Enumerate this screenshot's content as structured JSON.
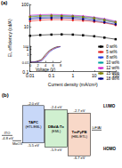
{
  "chart_data": [
    {
      "type": "line",
      "title": "(a)",
      "xlabel": "Current density (mA/cm²)",
      "ylabel": "EL efficiency (cd/A)",
      "log": true,
      "grid": false,
      "legend": "lower right",
      "xlim": [
        0.01,
        100
      ],
      "xticks": [
        0.01,
        0.1,
        1,
        10,
        100
      ],
      "ylim": [
        0.1,
        100
      ],
      "yticks": [
        0.1,
        1,
        10,
        100
      ],
      "x": [
        0.01,
        0.03,
        0.1,
        0.3,
        1,
        3,
        10,
        30,
        100
      ],
      "series": [
        {
          "name": "0 wt%",
          "color": "#000000",
          "marker": "square",
          "values": [
            4.0,
            4.3,
            4.5,
            4.6,
            4.5,
            4.2,
            3.8,
            3.3,
            2.8
          ]
        },
        {
          "name": "5 wt%",
          "color": "#e02020",
          "marker": "circle",
          "values": [
            18,
            20,
            21,
            21,
            20,
            19,
            17,
            15,
            12
          ]
        },
        {
          "name": "8 wt%",
          "color": "#2040e0",
          "marker": "triangle",
          "values": [
            25,
            27,
            28,
            28,
            27,
            25,
            22,
            19,
            15
          ]
        },
        {
          "name": "10 wt%",
          "color": "#00a0a0",
          "marker": "diamond",
          "values": [
            30,
            32,
            33,
            32,
            31,
            29,
            26,
            22,
            17
          ]
        },
        {
          "name": "12 wt%",
          "color": "#d020d0",
          "marker": "triangle",
          "values": [
            33,
            35,
            36,
            35,
            33,
            31,
            27,
            23,
            18
          ]
        },
        {
          "name": "15 wt%",
          "color": "#808000",
          "marker": "square",
          "values": [
            28,
            30,
            31,
            30,
            29,
            27,
            24,
            20,
            16
          ]
        },
        {
          "name": "18 wt%",
          "color": "#000080",
          "marker": "circle",
          "values": [
            22,
            24,
            25,
            25,
            24,
            22,
            19,
            16,
            13
          ]
        }
      ]
    },
    {
      "type": "line",
      "xlabel": "Voltage (V)",
      "log": "y",
      "grid": false,
      "xlim": [
        0,
        8
      ],
      "xticks": [
        0,
        2,
        4,
        6,
        8
      ],
      "ylim": [
        0.01,
        100
      ],
      "yticks": [
        0.01,
        1,
        100
      ],
      "x": [
        0,
        1,
        2,
        3,
        4,
        5,
        6,
        7,
        8
      ],
      "series": [
        {
          "color": "#000000",
          "values": [
            0.01,
            0.012,
            0.02,
            0.05,
            0.8,
            8,
            30,
            70,
            100
          ]
        },
        {
          "color": "#e02020",
          "values": [
            0.01,
            0.011,
            0.015,
            0.03,
            0.4,
            5,
            20,
            50,
            90
          ]
        },
        {
          "color": "#2040e0",
          "values": [
            0.01,
            0.011,
            0.013,
            0.02,
            0.2,
            3,
            15,
            40,
            80
          ]
        }
      ]
    }
  ],
  "diagram": {
    "title": "(b)",
    "lumo_text": "LUMO",
    "homo_text": "HOMO",
    "layers": [
      {
        "name": "ITO",
        "kind": "level",
        "color": "#808080",
        "level": {
          "value": -4.8,
          "label": "-4.8 eV"
        }
      },
      {
        "name": "MoO3",
        "kind": "level",
        "color": "#808080",
        "level": {
          "value": -5.3
        }
      },
      {
        "name": "TAPC",
        "role": "(HTL/EBL)",
        "kind": "box",
        "color": "#c8d8f8",
        "lumo": {
          "value": -2.0,
          "label": "-2.0 eV"
        },
        "homo": {
          "value": -5.5,
          "label": "-5.5 eV"
        }
      },
      {
        "name": "DBdA:Tx",
        "role": "(EML)",
        "kind": "box",
        "color": "#d0f0d0",
        "lumo": {
          "value": -2.4,
          "label": "-2.4 eV"
        },
        "homo": {
          "value": -5.9,
          "label": "-5.9 eV"
        }
      },
      {
        "name": "TmPyPB",
        "role": "(HBL/ETL)",
        "kind": "box",
        "color": "#f8d8c8",
        "lumo": {
          "value": -2.7,
          "label": "-2.7 eV"
        },
        "homo": {
          "value": -6.7,
          "label": "-6.7 eV"
        }
      },
      {
        "name": "LiF/Al",
        "kind": "level",
        "color": "#808080",
        "level": {
          "value": -4.3
        }
      }
    ]
  }
}
